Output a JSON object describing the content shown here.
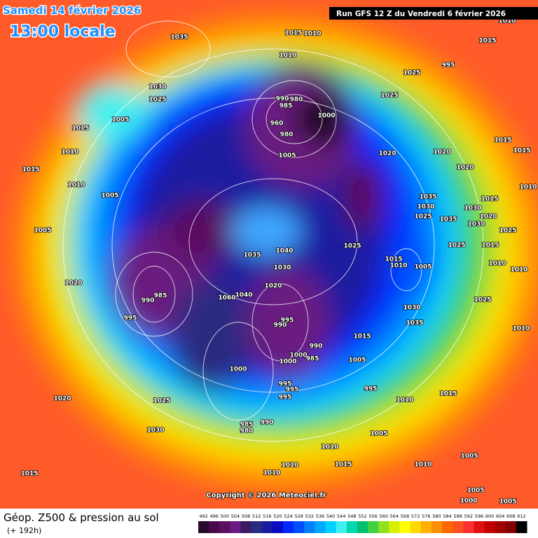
{
  "header": {
    "date": "Samedi 14 février 2026",
    "time": "13:00 locale",
    "run": "Run GFS 12 Z du Vendredi 6 février 2026"
  },
  "map": {
    "copyright": "Copyright © 2026 Meteociel.fr",
    "pressure_labels": [
      1015,
      1010,
      1035,
      1010,
      1015,
      1010,
      995,
      1025,
      1030,
      1025,
      1005,
      1015,
      1010,
      1015,
      990,
      980,
      985,
      1000,
      960,
      980,
      1005,
      1025,
      1020,
      1020,
      1015,
      1015,
      1020,
      1010,
      1005,
      1035,
      1030,
      1015,
      1030,
      1025,
      1035,
      1030,
      1020,
      1025,
      1005,
      1040,
      1035,
      1025,
      1015,
      1010,
      1005,
      1025,
      1015,
      1010,
      1030,
      1020,
      985,
      990,
      1060,
      1040,
      1020,
      1030,
      1035,
      995,
      990,
      995,
      1015,
      1010,
      1025,
      990,
      1000,
      985,
      1000,
      1005,
      1000,
      995,
      995,
      995,
      995,
      1010,
      1020,
      1025,
      1015,
      1030,
      985,
      990,
      980,
      1005,
      1010,
      1015,
      1010,
      1015,
      1010,
      1010,
      1005,
      1005,
      1000,
      1005,
      1010,
      1010
    ]
  },
  "footer": {
    "title": "Géop. Z500 & pression au sol",
    "lead": "(+ 192h)"
  },
  "legend": {
    "values": [
      492,
      496,
      500,
      504,
      508,
      512,
      516,
      520,
      524,
      528,
      532,
      536,
      540,
      544,
      548,
      552,
      556,
      560,
      564,
      568,
      572,
      576,
      580,
      584,
      588,
      592,
      596,
      600,
      604,
      608,
      612
    ],
    "colors": [
      "#2a0a2a",
      "#4a0a4a",
      "#5a1060",
      "#6a1a80",
      "#3a1a60",
      "#2a2a80",
      "#1a1aa0",
      "#0a0ac0",
      "#0028ff",
      "#0050ff",
      "#0080ff",
      "#00a8ff",
      "#00d0ff",
      "#40f0f0",
      "#00d8b0",
      "#00c070",
      "#40d040",
      "#90e020",
      "#d8f000",
      "#ffff00",
      "#ffd800",
      "#ffb000",
      "#ff9000",
      "#ff6a00",
      "#ff5020",
      "#ff3030",
      "#e01010",
      "#c00000",
      "#a00000",
      "#800000",
      "#000000"
    ]
  }
}
